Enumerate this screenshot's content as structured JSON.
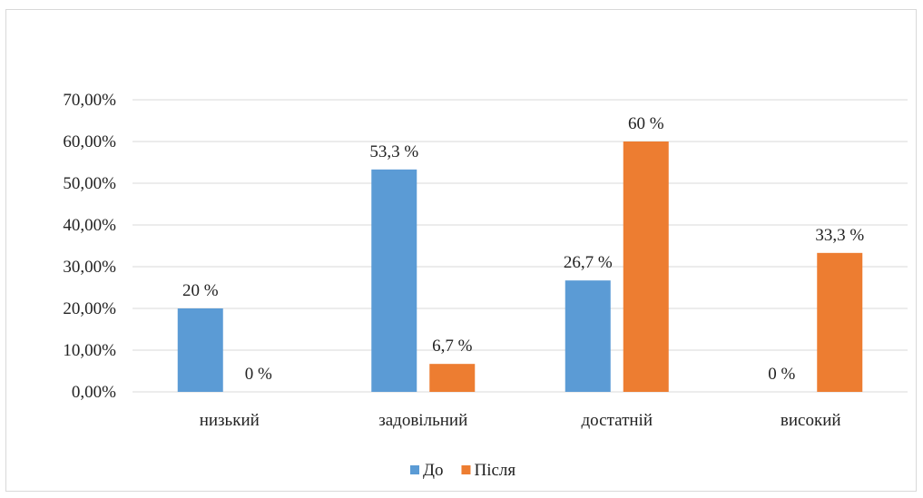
{
  "chart_data": {
    "type": "bar",
    "title": "",
    "xlabel": "",
    "ylabel": "",
    "categories": [
      "низький",
      "задовільний",
      "достатній",
      "високий"
    ],
    "series": [
      {
        "name": "До",
        "color": "#5b9bd5",
        "values": [
          20,
          53.3,
          26.7,
          0
        ],
        "labels": [
          "20 %",
          "53,3 %",
          "26,7 %",
          "0 %"
        ]
      },
      {
        "name": "Після",
        "color": "#ed7d31",
        "values": [
          0,
          6.7,
          60,
          33.3
        ],
        "labels": [
          "0 %",
          "6,7 %",
          "60 %",
          "33,3 %"
        ]
      }
    ],
    "ylim": [
      0,
      70
    ],
    "yticks": [
      0,
      10,
      20,
      30,
      40,
      50,
      60,
      70
    ],
    "ytick_labels": [
      "0,00%",
      "10,00%",
      "20,00%",
      "30,00%",
      "40,00%",
      "50,00%",
      "60,00%",
      "70,00%"
    ],
    "grid": true,
    "gridline_color": "#d9d9d9",
    "legend_position": "bottom"
  }
}
